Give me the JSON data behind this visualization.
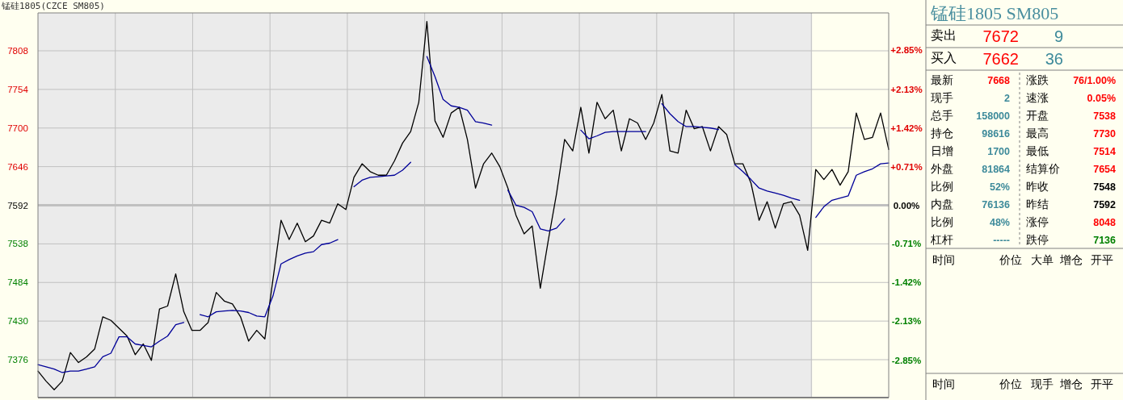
{
  "chart_data": [
    {
      "type": "line",
      "title": "锰硅1805(CZCE SM805)",
      "categories": [
        null,
        null,
        null,
        null,
        null,
        null,
        null,
        null,
        null,
        null,
        null,
        null,
        null,
        null,
        null,
        null,
        null,
        null,
        null,
        null,
        null,
        null,
        null,
        null,
        null,
        null,
        null,
        null,
        null,
        null,
        null,
        null,
        null,
        null,
        null,
        null,
        null,
        null,
        null,
        null,
        null,
        null,
        null,
        null,
        null,
        null,
        null,
        null,
        null,
        null,
        null,
        null,
        null,
        null,
        null,
        null,
        null,
        null,
        null,
        null,
        null,
        null,
        null,
        null,
        null,
        null,
        null,
        null,
        null,
        null,
        null,
        null,
        null,
        null,
        null,
        null,
        null,
        null,
        null,
        null,
        null,
        null,
        null,
        null,
        null,
        null,
        null,
        null,
        null,
        null,
        null,
        null,
        null,
        null,
        null,
        null,
        null,
        null,
        null,
        null,
        null,
        null,
        null,
        null,
        null,
        null
      ],
      "ylim": [
        7323,
        7861
      ],
      "yticks": [
        7376,
        7430,
        7484,
        7538,
        7592,
        7646,
        7700,
        7754,
        7808
      ],
      "y2lim": [
        -3.54,
        3.54
      ],
      "y2ticks": [
        {
          "value": -2.85,
          "label": "-2.85%"
        },
        {
          "value": -2.13,
          "label": "-2.13%"
        },
        {
          "value": -1.42,
          "label": "-1.42%"
        },
        {
          "value": -0.71,
          "label": "-0.71%"
        },
        {
          "value": 0,
          "label": "0.00%"
        },
        {
          "value": 0.71,
          "label": "+0.71%"
        },
        {
          "value": 1.42,
          "label": "+1.42%"
        },
        {
          "value": 2.13,
          "label": "+2.13%"
        },
        {
          "value": 2.85,
          "label": "+2.85%"
        }
      ],
      "tick_labels": "y",
      "grid": true,
      "marker": "none",
      "line_style": "solid",
      "ref_lines": [
        {
          "axis": "y",
          "value": 7592,
          "color": "#c0c0c0"
        }
      ],
      "series": [
        {
          "color": "#000000",
          "values": [
            7360,
            7346,
            7334,
            7346,
            7386,
            7372,
            7380,
            7391,
            7436,
            7431,
            7420,
            7409,
            7383,
            7398,
            7375,
            7447,
            7451,
            7496,
            7443,
            7417,
            7417,
            7428,
            7470,
            7458,
            7454,
            7436,
            7402,
            7417,
            7405,
            7488,
            7571,
            7544,
            7567,
            7541,
            7549,
            7571,
            7567,
            7594,
            7586,
            7631,
            7650,
            7639,
            7634,
            7634,
            7654,
            7679,
            7695,
            7736,
            7849,
            7710,
            7687,
            7721,
            7729,
            7684,
            7616,
            7650,
            7665,
            7646,
            7616,
            7578,
            7552,
            7563,
            7476,
            7544,
            7608,
            7684,
            7668,
            7729,
            7665,
            7736,
            7713,
            7725,
            7668,
            7713,
            7707,
            7684,
            7707,
            7747,
            7668,
            7665,
            7725,
            7699,
            7702,
            7668,
            7702,
            7691,
            7650,
            7650,
            7623,
            7571,
            7597,
            7560,
            7594,
            7597,
            7578,
            7529,
            7642,
            7628,
            7642,
            7620,
            7639,
            7721,
            7684,
            7687,
            7721,
            7670
          ]
        },
        {
          "color": "#000099",
          "values": [
            7369,
            7366,
            7363,
            7358,
            7360,
            7360,
            7363,
            7366,
            7380,
            7385,
            7408,
            7408,
            7398,
            7396,
            7394,
            7402,
            7409,
            7425,
            7428,
            null,
            7439,
            7436,
            7443,
            7444,
            7445,
            7444,
            7442,
            7437,
            7436,
            7465,
            7510,
            7516,
            7521,
            7525,
            7527,
            7537,
            7539,
            7544,
            null,
            7618,
            7627,
            7631,
            7632,
            7633,
            7634,
            7641,
            7652,
            null,
            7800,
            7772,
            7740,
            7731,
            7729,
            7725,
            7709,
            7707,
            7704,
            null,
            7613,
            7592,
            7589,
            7583,
            7559,
            7556,
            7560,
            7573,
            null,
            7697,
            7685,
            7689,
            7694,
            7695,
            7695,
            7695,
            7695,
            7695,
            null,
            7734,
            7720,
            7709,
            7702,
            7702,
            7701,
            7700,
            7698,
            null,
            7649,
            7639,
            7628,
            7616,
            7612,
            7609,
            7606,
            7602,
            7599,
            null,
            7575,
            7590,
            7599,
            7602,
            7605,
            7634,
            7639,
            7643,
            7650,
            7651
          ]
        }
      ]
    },
    {
      "type": "other",
      "title": "锰硅1805  SM805",
      "annotations": [
        "卖出",
        "7672",
        "9",
        "买入",
        "7662",
        "36",
        "最新",
        "7668",
        "涨跌",
        "76/1.00%",
        "现手",
        "2",
        "速涨",
        "0.05%",
        "总手",
        "158000",
        "开盘",
        "7538",
        "持仓",
        "98616",
        "最高",
        "7730",
        "日增",
        "1700",
        "最低",
        "7514",
        "外盘",
        "81864",
        "结算价",
        "7654",
        "比例",
        "52%",
        "昨收",
        "7548",
        "内盘",
        "76136",
        "昨结",
        "7592",
        "比例",
        "48%",
        "涨停",
        "8048",
        "杠杆",
        "-----",
        "跌停",
        "7136",
        "时间",
        "价位",
        "大单",
        "增仓",
        "开平",
        "时间",
        "价位",
        "现手",
        "增仓",
        "开平"
      ]
    }
  ]
}
